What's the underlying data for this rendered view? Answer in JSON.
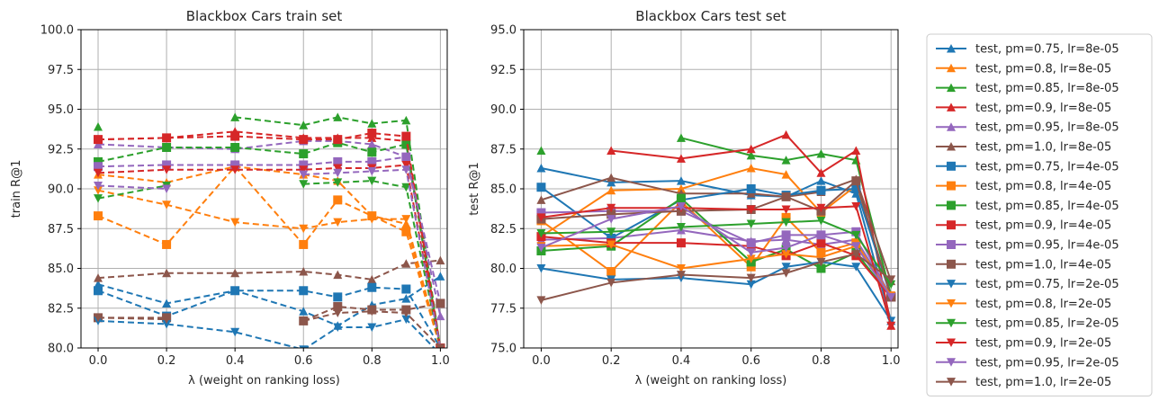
{
  "chart_data": [
    {
      "type": "line",
      "title": "Blackbox Cars train set",
      "xlabel": "λ (weight on ranking loss)",
      "ylabel": "train R@1",
      "xlim": [
        -0.05,
        1.02
      ],
      "ylim": [
        80.0,
        100.0
      ],
      "xticks": [
        "0.0",
        "0.2",
        "0.4",
        "0.6",
        "0.8",
        "1.0"
      ],
      "yticks": [
        "80.0",
        "82.5",
        "85.0",
        "87.5",
        "90.0",
        "92.5",
        "95.0",
        "97.5",
        "100.0"
      ],
      "grid": true,
      "line_style": "dashed",
      "x": [
        0.0,
        0.2,
        0.4,
        0.6,
        0.7,
        0.8,
        0.9,
        1.0
      ],
      "series": [
        {
          "name": "",
          "color": "#1f77b4",
          "marker": "triangle-up",
          "values": [
            84.0,
            82.8,
            83.6,
            82.3,
            81.4,
            82.7,
            83.1,
            84.5
          ]
        },
        {
          "name": "",
          "color": "#ff7f0e",
          "marker": "triangle-up",
          "values": [
            90.9,
            90.4,
            91.4,
            90.9,
            90.5,
            88.3,
            87.8,
            80.0
          ]
        },
        {
          "name": "",
          "color": "#2ca02c",
          "marker": "triangle-up",
          "values": [
            93.9,
            null,
            94.5,
            94.0,
            94.5,
            94.1,
            94.3,
            80.0
          ]
        },
        {
          "name": "",
          "color": "#d62728",
          "marker": "triangle-up",
          "values": [
            93.1,
            93.2,
            93.6,
            93.2,
            93.2,
            93.2,
            93.0,
            80.0
          ]
        },
        {
          "name": "",
          "color": "#9467bd",
          "marker": "triangle-up",
          "values": [
            92.8,
            92.6,
            92.5,
            93.0,
            93.0,
            92.8,
            92.0,
            82.0
          ]
        },
        {
          "name": "",
          "color": "#8c564b",
          "marker": "triangle-up",
          "values": [
            84.4,
            84.7,
            84.7,
            84.8,
            84.6,
            84.3,
            85.3,
            85.5
          ]
        },
        {
          "name": "",
          "color": "#1f77b4",
          "marker": "square",
          "values": [
            83.6,
            82.0,
            83.6,
            83.6,
            83.2,
            83.8,
            83.7,
            80.0
          ]
        },
        {
          "name": "",
          "color": "#ff7f0e",
          "marker": "square",
          "values": [
            88.3,
            86.5,
            91.4,
            86.5,
            89.3,
            88.3,
            87.3,
            80.0
          ]
        },
        {
          "name": "",
          "color": "#2ca02c",
          "marker": "square",
          "values": [
            91.7,
            92.6,
            92.6,
            92.2,
            92.9,
            92.3,
            92.8,
            80.0
          ]
        },
        {
          "name": "",
          "color": "#d62728",
          "marker": "square",
          "values": [
            93.1,
            93.2,
            93.3,
            93.1,
            93.1,
            93.5,
            93.3,
            80.0
          ]
        },
        {
          "name": "",
          "color": "#9467bd",
          "marker": "square",
          "values": [
            91.4,
            91.5,
            91.5,
            91.5,
            91.7,
            91.7,
            92.0,
            82.8
          ]
        },
        {
          "name": "",
          "color": "#8c564b",
          "marker": "square",
          "values": [
            81.9,
            81.9,
            null,
            81.7,
            82.6,
            82.4,
            82.4,
            82.8
          ]
        },
        {
          "name": "",
          "color": "#1f77b4",
          "marker": "triangle-down",
          "values": [
            81.7,
            81.5,
            81.0,
            79.9,
            81.3,
            81.3,
            81.8,
            79.6
          ]
        },
        {
          "name": "",
          "color": "#ff7f0e",
          "marker": "triangle-down",
          "values": [
            89.9,
            89.0,
            87.9,
            87.5,
            87.9,
            88.1,
            88.1,
            80.0
          ]
        },
        {
          "name": "",
          "color": "#2ca02c",
          "marker": "triangle-down",
          "values": [
            89.4,
            90.2,
            null,
            90.3,
            90.4,
            90.5,
            90.1,
            80.0
          ]
        },
        {
          "name": "",
          "color": "#d62728",
          "marker": "triangle-down",
          "values": [
            91.0,
            91.2,
            91.2,
            91.2,
            91.3,
            91.3,
            91.5,
            80.0
          ]
        },
        {
          "name": "",
          "color": "#9467bd",
          "marker": "triangle-down",
          "values": [
            90.2,
            90.0,
            null,
            90.9,
            91.0,
            91.1,
            91.2,
            80.0
          ]
        },
        {
          "name": "",
          "color": "#8c564b",
          "marker": "triangle-down",
          "values": [
            81.9,
            81.8,
            null,
            81.7,
            82.2,
            82.3,
            82.2,
            80.0
          ]
        }
      ]
    },
    {
      "type": "line",
      "title": "Blackbox Cars test set",
      "xlabel": "λ (weight on ranking loss)",
      "ylabel": "test R@1",
      "xlim": [
        -0.05,
        1.02
      ],
      "ylim": [
        75.0,
        95.0
      ],
      "xticks": [
        "0.0",
        "0.2",
        "0.4",
        "0.6",
        "0.8",
        "1.0"
      ],
      "yticks": [
        "75.0",
        "77.5",
        "80.0",
        "82.5",
        "85.0",
        "87.5",
        "90.0",
        "92.5",
        "95.0"
      ],
      "grid": true,
      "line_style": "solid",
      "legend_position": "outside-right",
      "x": [
        0.0,
        0.2,
        0.4,
        0.6,
        0.7,
        0.8,
        0.9,
        1.0
      ],
      "series": [
        {
          "name": "test, pm=0.75, lr=8e-05",
          "color": "#1f77b4",
          "marker": "triangle-up",
          "values": [
            86.3,
            85.4,
            85.5,
            84.6,
            84.5,
            85.5,
            84.7,
            76.7
          ]
        },
        {
          "name": "test, pm=0.8, lr=8e-05",
          "color": "#ff7f0e",
          "marker": "triangle-up",
          "values": [
            82.0,
            84.9,
            85.0,
            86.3,
            85.9,
            83.5,
            85.2,
            78.3
          ]
        },
        {
          "name": "test, pm=0.85, lr=8e-05",
          "color": "#2ca02c",
          "marker": "triangle-up",
          "values": [
            87.4,
            null,
            88.2,
            87.1,
            86.8,
            87.2,
            86.8,
            78.3
          ]
        },
        {
          "name": "test, pm=0.9, lr=8e-05",
          "color": "#d62728",
          "marker": "triangle-up",
          "values": [
            null,
            87.4,
            86.9,
            87.5,
            88.4,
            86.0,
            87.4,
            76.4
          ]
        },
        {
          "name": "test, pm=0.95, lr=8e-05",
          "color": "#9467bd",
          "marker": "triangle-up",
          "values": [
            81.8,
            81.9,
            82.4,
            81.7,
            81.8,
            81.5,
            81.8,
            78.3
          ]
        },
        {
          "name": "test, pm=1.0, lr=8e-05",
          "color": "#8c564b",
          "marker": "triangle-up",
          "values": [
            84.3,
            85.7,
            84.7,
            84.7,
            84.5,
            84.8,
            85.6,
            79.2
          ]
        },
        {
          "name": "test, pm=0.75, lr=4e-05",
          "color": "#1f77b4",
          "marker": "square",
          "values": [
            85.1,
            81.9,
            84.3,
            85.0,
            84.6,
            84.9,
            85.0,
            78.2
          ]
        },
        {
          "name": "test, pm=0.8, lr=4e-05",
          "color": "#ff7f0e",
          "marker": "square",
          "values": [
            83.0,
            79.8,
            84.2,
            80.1,
            83.2,
            81.0,
            81.6,
            78.2
          ]
        },
        {
          "name": "test, pm=0.85, lr=4e-05",
          "color": "#2ca02c",
          "marker": "square",
          "values": [
            81.1,
            81.4,
            84.4,
            80.4,
            81.2,
            80.0,
            81.0,
            78.2
          ]
        },
        {
          "name": "test, pm=0.9, lr=4e-05",
          "color": "#d62728",
          "marker": "square",
          "values": [
            82.0,
            81.6,
            81.6,
            81.4,
            80.8,
            81.6,
            80.8,
            78.2
          ]
        },
        {
          "name": "test, pm=0.95, lr=4e-05",
          "color": "#9467bd",
          "marker": "square",
          "values": [
            83.5,
            83.6,
            83.6,
            81.6,
            82.1,
            82.1,
            82.3,
            78.2
          ]
        },
        {
          "name": "test, pm=1.0, lr=4e-05",
          "color": "#8c564b",
          "marker": "square",
          "values": [
            83.1,
            83.4,
            83.6,
            83.7,
            84.5,
            83.6,
            85.5,
            78.2
          ]
        },
        {
          "name": "test, pm=0.75, lr=2e-05",
          "color": "#1f77b4",
          "marker": "triangle-down",
          "values": [
            80.0,
            79.3,
            79.4,
            79.0,
            80.1,
            80.4,
            80.1,
            76.7
          ]
        },
        {
          "name": "test, pm=0.8, lr=2e-05",
          "color": "#ff7f0e",
          "marker": "triangle-down",
          "values": [
            81.4,
            81.5,
            80.0,
            80.6,
            80.9,
            80.7,
            81.4,
            78.3
          ]
        },
        {
          "name": "test, pm=0.85, lr=2e-05",
          "color": "#2ca02c",
          "marker": "triangle-down",
          "values": [
            82.2,
            82.3,
            82.6,
            82.8,
            82.9,
            83.0,
            82.1,
            79.0
          ]
        },
        {
          "name": "test, pm=0.9, lr=2e-05",
          "color": "#d62728",
          "marker": "triangle-down",
          "values": [
            83.2,
            83.8,
            83.8,
            83.7,
            83.7,
            83.8,
            83.9,
            76.4
          ]
        },
        {
          "name": "test, pm=0.95, lr=2e-05",
          "color": "#9467bd",
          "marker": "triangle-down",
          "values": [
            81.3,
            83.1,
            83.9,
            81.0,
            81.3,
            82.1,
            81.4,
            78.2
          ]
        },
        {
          "name": "test, pm=1.0, lr=2e-05",
          "color": "#8c564b",
          "marker": "triangle-down",
          "values": [
            78.0,
            79.1,
            79.6,
            79.4,
            79.7,
            80.4,
            80.9,
            79.3
          ]
        }
      ]
    }
  ]
}
